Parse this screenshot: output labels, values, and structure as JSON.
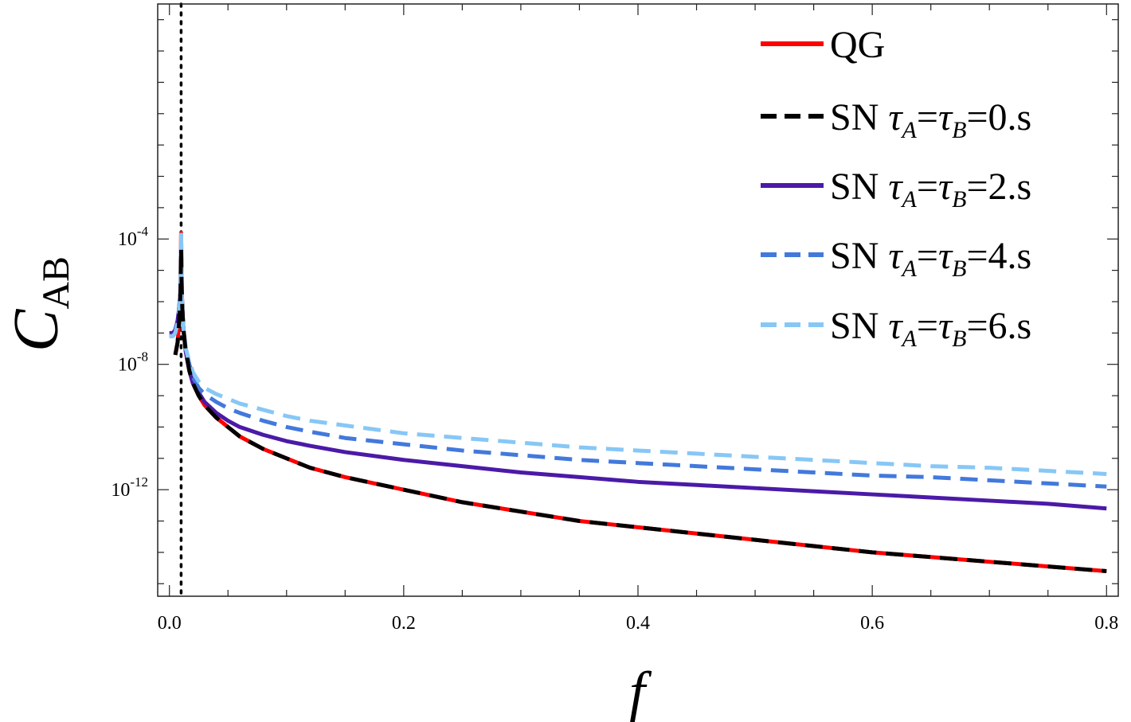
{
  "chart_data": {
    "type": "line",
    "xlabel": "f",
    "ylabel": {
      "base": "C",
      "sub": "AB"
    },
    "xlim": [
      -0.01,
      0.81
    ],
    "ylim_log10": [
      -15.4,
      3.5
    ],
    "yscale": "log",
    "x_ticks": [
      {
        "value": 0.0,
        "label": "0.0"
      },
      {
        "value": 0.2,
        "label": "0.2"
      },
      {
        "value": 0.4,
        "label": "0.4"
      },
      {
        "value": 0.6,
        "label": "0.6"
      },
      {
        "value": 0.8,
        "label": "0.8"
      }
    ],
    "y_ticks": [
      {
        "exp": -4,
        "base": "10",
        "exponent": "-4"
      },
      {
        "exp": -8,
        "base": "10",
        "exponent": "-8"
      },
      {
        "exp": -12,
        "base": "10",
        "exponent": "-12"
      }
    ],
    "reference_line": {
      "x": 0.01,
      "style": "dotted",
      "color": "#000000"
    },
    "legend_position": "top-right",
    "series": [
      {
        "name": "QG",
        "color": "#ff0000",
        "dash": "solid",
        "label_prefix": "",
        "label_tauA": "",
        "label_tauB": "",
        "label_value": "",
        "x": [
          0.005,
          0.007,
          0.008,
          0.009,
          0.0095,
          0.01,
          0.0105,
          0.011,
          0.012,
          0.014,
          0.017,
          0.02,
          0.025,
          0.03,
          0.04,
          0.05,
          0.06,
          0.08,
          0.1,
          0.12,
          0.15,
          0.2,
          0.25,
          0.3,
          0.35,
          0.4,
          0.45,
          0.5,
          0.55,
          0.6,
          0.65,
          0.7,
          0.75,
          0.8
        ],
        "y_log10": [
          -7.7,
          -7.3,
          -6.8,
          -6.2,
          -5.6,
          -3.8,
          -5.6,
          -6.2,
          -6.9,
          -7.6,
          -8.2,
          -8.6,
          -9.0,
          -9.3,
          -9.7,
          -10.0,
          -10.3,
          -10.7,
          -11.0,
          -11.3,
          -11.6,
          -12.0,
          -12.4,
          -12.7,
          -13.0,
          -13.2,
          -13.4,
          -13.6,
          -13.8,
          -14.0,
          -14.15,
          -14.3,
          -14.45,
          -14.6
        ]
      },
      {
        "name": "SN τA=τB=0.s",
        "color": "#000000",
        "dash": "dashed",
        "label_prefix": "SN ",
        "label_tauA": "A",
        "label_tauB": "B",
        "label_value": "=0.s",
        "x": [
          0.005,
          0.007,
          0.008,
          0.009,
          0.0095,
          0.01,
          0.0105,
          0.011,
          0.012,
          0.014,
          0.017,
          0.02,
          0.025,
          0.03,
          0.04,
          0.05,
          0.06,
          0.08,
          0.1,
          0.12,
          0.15,
          0.2,
          0.25,
          0.3,
          0.35,
          0.4,
          0.45,
          0.5,
          0.55,
          0.6,
          0.65,
          0.7,
          0.75,
          0.8
        ],
        "y_log10": [
          -7.7,
          -7.3,
          -6.8,
          -6.2,
          -5.6,
          -4.3,
          -5.6,
          -6.2,
          -6.9,
          -7.6,
          -8.2,
          -8.6,
          -9.0,
          -9.3,
          -9.7,
          -10.0,
          -10.3,
          -10.7,
          -11.0,
          -11.3,
          -11.6,
          -12.0,
          -12.4,
          -12.7,
          -13.0,
          -13.2,
          -13.4,
          -13.6,
          -13.8,
          -14.0,
          -14.15,
          -14.3,
          -14.45,
          -14.6
        ]
      },
      {
        "name": "SN τA=τB=2.s",
        "color": "#4b1aa7",
        "dash": "solid",
        "label_prefix": "SN ",
        "label_tauA": "A",
        "label_tauB": "B",
        "label_value": "=2.s",
        "x": [
          0.0,
          0.003,
          0.005,
          0.007,
          0.008,
          0.009,
          0.0095,
          0.01,
          0.0105,
          0.011,
          0.012,
          0.014,
          0.017,
          0.02,
          0.025,
          0.03,
          0.04,
          0.05,
          0.06,
          0.08,
          0.1,
          0.12,
          0.15,
          0.2,
          0.25,
          0.3,
          0.35,
          0.4,
          0.45,
          0.5,
          0.55,
          0.6,
          0.65,
          0.7,
          0.75,
          0.8
        ],
        "y_log10": [
          -7.0,
          -7.0,
          -6.9,
          -6.6,
          -6.3,
          -5.9,
          -5.6,
          -4.4,
          -5.6,
          -6.2,
          -6.9,
          -7.6,
          -8.2,
          -8.6,
          -8.9,
          -9.2,
          -9.55,
          -9.8,
          -10.0,
          -10.25,
          -10.45,
          -10.6,
          -10.8,
          -11.05,
          -11.25,
          -11.45,
          -11.6,
          -11.75,
          -11.85,
          -11.95,
          -12.05,
          -12.15,
          -12.25,
          -12.35,
          -12.45,
          -12.6
        ]
      },
      {
        "name": "SN τA=τB=4.s",
        "color": "#4279dc",
        "dash": "dashed",
        "label_prefix": "SN ",
        "label_tauA": "A",
        "label_tauB": "B",
        "label_value": "=4.s",
        "x": [
          0.0,
          0.003,
          0.005,
          0.007,
          0.008,
          0.009,
          0.0095,
          0.01,
          0.0105,
          0.011,
          0.012,
          0.014,
          0.017,
          0.02,
          0.025,
          0.03,
          0.04,
          0.05,
          0.06,
          0.08,
          0.1,
          0.12,
          0.15,
          0.2,
          0.25,
          0.3,
          0.35,
          0.4,
          0.45,
          0.5,
          0.55,
          0.6,
          0.65,
          0.7,
          0.75,
          0.8
        ],
        "y_log10": [
          -7.1,
          -7.1,
          -7.0,
          -6.6,
          -6.3,
          -5.9,
          -5.6,
          -4.4,
          -5.6,
          -6.2,
          -6.9,
          -7.5,
          -8.0,
          -8.4,
          -8.75,
          -8.95,
          -9.2,
          -9.4,
          -9.55,
          -9.8,
          -10.0,
          -10.15,
          -10.35,
          -10.55,
          -10.75,
          -10.9,
          -11.05,
          -11.15,
          -11.25,
          -11.35,
          -11.45,
          -11.55,
          -11.6,
          -11.7,
          -11.8,
          -11.9
        ]
      },
      {
        "name": "SN τA=τB=6.s",
        "color": "#87c7f6",
        "dash": "dashed",
        "label_prefix": "SN ",
        "label_tauA": "A",
        "label_tauB": "B",
        "label_value": "=6.s",
        "x": [
          0.0,
          0.003,
          0.005,
          0.007,
          0.008,
          0.009,
          0.0095,
          0.01,
          0.0105,
          0.011,
          0.012,
          0.014,
          0.017,
          0.02,
          0.025,
          0.03,
          0.04,
          0.05,
          0.06,
          0.08,
          0.1,
          0.12,
          0.15,
          0.2,
          0.25,
          0.3,
          0.35,
          0.4,
          0.45,
          0.5,
          0.55,
          0.6,
          0.65,
          0.7,
          0.75,
          0.8
        ],
        "y_log10": [
          -7.1,
          -7.1,
          -7.0,
          -6.7,
          -6.4,
          -6.0,
          -5.7,
          -3.8,
          -5.7,
          -6.3,
          -6.9,
          -7.5,
          -7.9,
          -8.25,
          -8.55,
          -8.75,
          -8.95,
          -9.1,
          -9.25,
          -9.45,
          -9.65,
          -9.8,
          -9.95,
          -10.2,
          -10.35,
          -10.5,
          -10.65,
          -10.75,
          -10.85,
          -10.95,
          -11.05,
          -11.15,
          -11.25,
          -11.3,
          -11.4,
          -11.5
        ]
      }
    ]
  }
}
